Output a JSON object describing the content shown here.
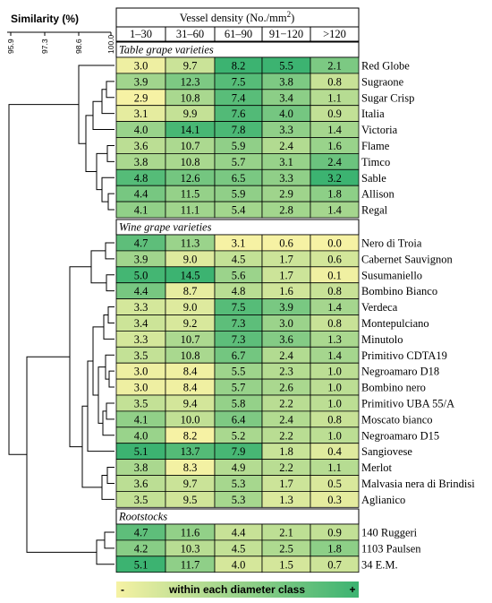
{
  "colors": {
    "low": "#f6f2a4",
    "high": "#3cb371",
    "section_bg": "#ffffff",
    "line": "#000000"
  },
  "chart_data": {
    "type": "heatmap",
    "header_title": "Vessel density (No./mm",
    "header_title_sup": "2",
    "header_title_end": ")",
    "columns": [
      "1–30",
      "31–60",
      "61–90",
      "91−120",
      ">120"
    ],
    "similarity_title": "Similarity (%)",
    "similarity_ticks": [
      "95.9",
      "97.3",
      "98.6",
      "100.0"
    ],
    "legend_minus": "-",
    "legend_text": "within each diameter class",
    "legend_plus": "+",
    "col_min": [
      2.9,
      8.2,
      3.1,
      0.6,
      0.0
    ],
    "col_max": [
      5.1,
      14.5,
      8.2,
      5.5,
      3.2
    ],
    "sections": [
      {
        "title": "Table grape varieties",
        "rows": [
          {
            "name": "Red Globe",
            "values": [
              "3.0",
              "9.7",
              "8.2",
              "5.5",
              "2.1"
            ]
          },
          {
            "name": "Sugraone",
            "values": [
              "3.9",
              "12.3",
              "7.5",
              "3.8",
              "0.8"
            ]
          },
          {
            "name": "Sugar Crisp",
            "values": [
              "2.9",
              "10.8",
              "7.4",
              "3.4",
              "1.1"
            ]
          },
          {
            "name": "Italia",
            "values": [
              "3.1",
              "9.9",
              "7.6",
              "4.0",
              "0.9"
            ]
          },
          {
            "name": "Victoria",
            "values": [
              "4.0",
              "14.1",
              "7.8",
              "3.3",
              "1.4"
            ]
          },
          {
            "name": "Flame",
            "values": [
              "3.6",
              "10.7",
              "5.9",
              "2.4",
              "1.6"
            ]
          },
          {
            "name": "Timco",
            "values": [
              "3.8",
              "10.8",
              "5.7",
              "3.1",
              "2.4"
            ]
          },
          {
            "name": "Sable",
            "values": [
              "4.8",
              "12.6",
              "6.5",
              "3.3",
              "3.2"
            ]
          },
          {
            "name": "Allison",
            "values": [
              "4.4",
              "11.5",
              "5.9",
              "2.9",
              "1.8"
            ]
          },
          {
            "name": "Regal",
            "values": [
              "4.1",
              "11.1",
              "5.4",
              "2.8",
              "1.4"
            ]
          }
        ]
      },
      {
        "title": "Wine grape varieties",
        "rows": [
          {
            "name": "Nero di Troia",
            "values": [
              "4.7",
              "11.3",
              "3.1",
              "0.6",
              "0.0"
            ]
          },
          {
            "name": "Cabernet Sauvignon",
            "values": [
              "3.9",
              "9.0",
              "4.5",
              "1.7",
              "0.6"
            ]
          },
          {
            "name": "Susumaniello",
            "values": [
              "5.0",
              "14.5",
              "5.6",
              "1.7",
              "0.1"
            ]
          },
          {
            "name": "Bombino Bianco",
            "values": [
              "4.4",
              "8.7",
              "4.8",
              "1.6",
              "0.8"
            ]
          },
          {
            "name": "Verdeca",
            "values": [
              "3.3",
              "9.0",
              "7.5",
              "3.9",
              "1.4"
            ]
          },
          {
            "name": "Montepulciano",
            "values": [
              "3.4",
              "9.2",
              "7.3",
              "3.0",
              "0.8"
            ]
          },
          {
            "name": "Minutolo",
            "values": [
              "3.3",
              "10.7",
              "7.3",
              "3.6",
              "1.3"
            ]
          },
          {
            "name": "Primitivo CDTA19",
            "values": [
              "3.5",
              "10.8",
              "6.7",
              "2.4",
              "1.4"
            ]
          },
          {
            "name": "Negroamaro D18",
            "values": [
              "3.0",
              "8.4",
              "5.5",
              "2.3",
              "1.0"
            ]
          },
          {
            "name": "Bombino nero",
            "values": [
              "3.0",
              "8.4",
              "5.7",
              "2.6",
              "1.0"
            ]
          },
          {
            "name": "Primitivo UBA 55/A",
            "values": [
              "3.5",
              "9.4",
              "5.8",
              "2.2",
              "1.0"
            ]
          },
          {
            "name": "Moscato bianco",
            "values": [
              "4.1",
              "10.0",
              "6.4",
              "2.4",
              "0.8"
            ]
          },
          {
            "name": "Negroamaro D15",
            "values": [
              "4.0",
              "8.2",
              "5.2",
              "2.2",
              "1.0"
            ]
          },
          {
            "name": "Sangiovese",
            "values": [
              "5.1",
              "13.7",
              "7.9",
              "1.8",
              "0.4"
            ]
          },
          {
            "name": "Merlot",
            "values": [
              "3.8",
              "8.3",
              "4.9",
              "2.2",
              "1.1"
            ]
          },
          {
            "name": "Malvasia nera di Brindisi",
            "values": [
              "3.6",
              "9.7",
              "5.3",
              "1.7",
              "0.5"
            ]
          },
          {
            "name": "Aglianico",
            "values": [
              "3.5",
              "9.5",
              "5.3",
              "1.3",
              "0.3"
            ]
          }
        ]
      },
      {
        "title": "Rootstocks",
        "rows": [
          {
            "name": "140 Ruggeri",
            "values": [
              "4.7",
              "11.6",
              "4.4",
              "2.1",
              "0.9"
            ]
          },
          {
            "name": "1103 Paulsen",
            "values": [
              "4.2",
              "10.3",
              "4.5",
              "2.5",
              "1.8"
            ]
          },
          {
            "name": "34 E.M.",
            "values": [
              "5.1",
              "11.7",
              "4.0",
              "1.5",
              "0.7"
            ]
          }
        ]
      }
    ]
  }
}
